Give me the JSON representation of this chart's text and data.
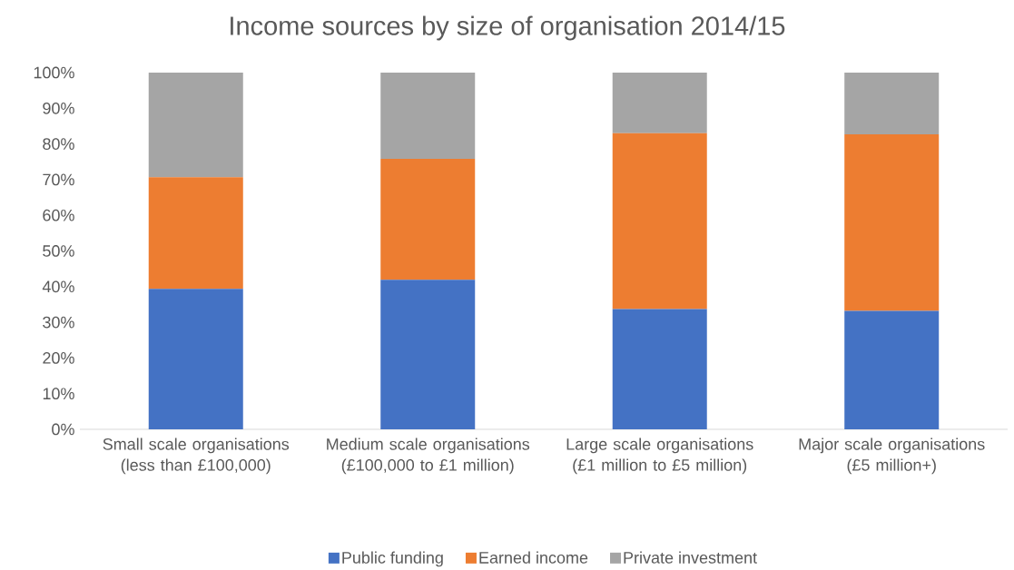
{
  "chart_data": {
    "type": "bar",
    "stacked": true,
    "title": "Income sources by size of organisation 2014/15",
    "categories": [
      "Small scale organisations (less than £100,000)",
      "Medium scale organisations (£100,000 to £1 million)",
      "Large scale organisations (£1 million to £5 million)",
      "Major scale organisations (£5 million+)"
    ],
    "series": [
      {
        "name": "Public funding",
        "color": "#4472c4",
        "values": [
          39.4,
          41.9,
          33.7,
          33.2
        ]
      },
      {
        "name": "Earned income",
        "color": "#ed7d31",
        "values": [
          31.3,
          33.9,
          49.3,
          49.5
        ]
      },
      {
        "name": "Private investment",
        "color": "#a5a5a5",
        "values": [
          29.3,
          24.2,
          17.0,
          17.3
        ]
      }
    ],
    "ylim": [
      0,
      100
    ],
    "yticks": [
      {
        "value": 0,
        "label": "0%"
      },
      {
        "value": 10,
        "label": "10%"
      },
      {
        "value": 20,
        "label": "20%"
      },
      {
        "value": 30,
        "label": "30%"
      },
      {
        "value": 40,
        "label": "40%"
      },
      {
        "value": 50,
        "label": "50%"
      },
      {
        "value": 60,
        "label": "60%"
      },
      {
        "value": 70,
        "label": "70%"
      },
      {
        "value": 80,
        "label": "80%"
      },
      {
        "value": 90,
        "label": "90%"
      },
      {
        "value": 100,
        "label": "100%"
      }
    ],
    "grid": false,
    "legend": "bottom"
  }
}
